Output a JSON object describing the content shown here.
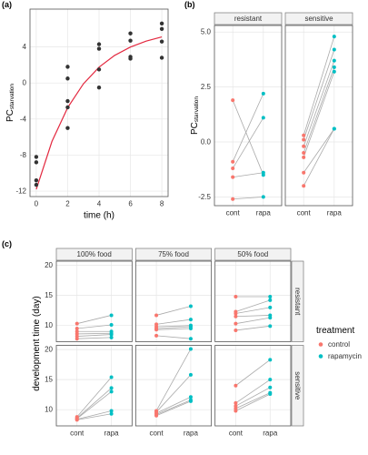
{
  "chart_data": [
    {
      "type": "scatter",
      "panel_label": "(a)",
      "xlabel": "time (h)",
      "ylabel": "PC",
      "ylabel_sub": "starvation",
      "xlim": [
        -0.4,
        8.4
      ],
      "ylim": [
        -12.6,
        8.2
      ],
      "xticks": [
        0,
        2,
        4,
        6,
        8
      ],
      "yticks": [
        -12,
        -8,
        -4,
        0,
        4
      ],
      "grid": true,
      "x": [
        0,
        0,
        0,
        0,
        2,
        2,
        2,
        2,
        2,
        4,
        4,
        4,
        4,
        6,
        6,
        6,
        6,
        8,
        8,
        8,
        8
      ],
      "values": [
        -8.2,
        -8.8,
        -10.8,
        -11.3,
        1.8,
        0.5,
        -2.0,
        -2.7,
        -5.0,
        4.3,
        3.8,
        1.5,
        -0.5,
        5.5,
        4.7,
        2.9,
        2.7,
        6.6,
        6.0,
        4.6,
        2.8
      ],
      "color": "#333333",
      "fit": {
        "x": [
          0,
          1,
          2,
          3,
          4,
          5,
          6,
          7,
          8
        ],
        "values": [
          -11.8,
          -6.48,
          -2.74,
          -0.1,
          1.76,
          3.07,
          3.99,
          4.65,
          5.11
        ],
        "color": "#E3283F"
      }
    },
    {
      "type": "paired",
      "panel_label": "(b)",
      "ylabel": "PC",
      "ylabel_sub": "starvation",
      "categories": [
        "cont",
        "rapa"
      ],
      "columns": [
        "resistant",
        "sensitive"
      ],
      "ylim": [
        -2.9,
        5.3
      ],
      "yticks": [
        -2.5,
        {
          "value": 0,
          "label": "0.0"
        },
        2.5,
        {
          "value": 5,
          "label": "5.0"
        }
      ],
      "grid": true,
      "colors": [
        "#F8766D",
        "#00BFC4"
      ],
      "facets": [
        [
          [
            [
              1.9,
              -0.9,
              -1.2,
              -1.6,
              -2.6
            ],
            [
              -1.5,
              2.2,
              1.1,
              -1.4,
              -2.5
            ]
          ],
          [
            [
              0.3,
              0.1,
              -0.2,
              -0.5,
              -0.7,
              -1.4,
              -2.0
            ],
            [
              4.8,
              4.2,
              3.7,
              3.4,
              3.2,
              0.6,
              0.6
            ]
          ]
        ]
      ]
    },
    {
      "type": "paired",
      "panel_label": "(c)",
      "ylabel": "development time (day)",
      "categories": [
        "cont",
        "rapa"
      ],
      "columns": [
        "100% food",
        "75% food",
        "50% food"
      ],
      "rows": [
        "resistant",
        "sensitive"
      ],
      "ylim": [
        7.3,
        20.7
      ],
      "yticks": [
        10,
        15,
        20
      ],
      "grid": true,
      "legend_title": "treatment",
      "series": [
        {
          "name": "control",
          "color": "#F8766D"
        },
        {
          "name": "rapamycin",
          "color": "#00BFC4"
        }
      ],
      "facets": [
        [
          [
            [
              10.3,
              9.5,
              9.0,
              8.6,
              8.2,
              7.8
            ],
            [
              11.7,
              10.1,
              9.0,
              8.7,
              8.5,
              8.0
            ]
          ],
          [
            [
              11.7,
              10.2,
              9.8,
              9.5,
              9.3,
              8.3
            ],
            [
              13.2,
              11.0,
              10.0,
              9.8,
              9.5,
              7.8
            ]
          ],
          [
            [
              14.8,
              12.3,
              12.0,
              11.5,
              10.3,
              9.2
            ],
            [
              14.8,
              14.2,
              13.0,
              11.7,
              11.3,
              9.9
            ]
          ]
        ],
        [
          [
            [
              8.8,
              8.6,
              8.5,
              8.4,
              8.3
            ],
            [
              15.4,
              13.6,
              13.0,
              9.8,
              9.3
            ]
          ],
          [
            [
              9.8,
              9.6,
              9.4,
              9.2,
              9.0
            ],
            [
              20.1,
              15.8,
              12.1,
              11.6,
              11.4
            ]
          ],
          [
            [
              14.0,
              11.1,
              10.6,
              10.2,
              9.8
            ],
            [
              18.3,
              15.0,
              13.7,
              12.8,
              12.6
            ]
          ]
        ]
      ]
    }
  ]
}
